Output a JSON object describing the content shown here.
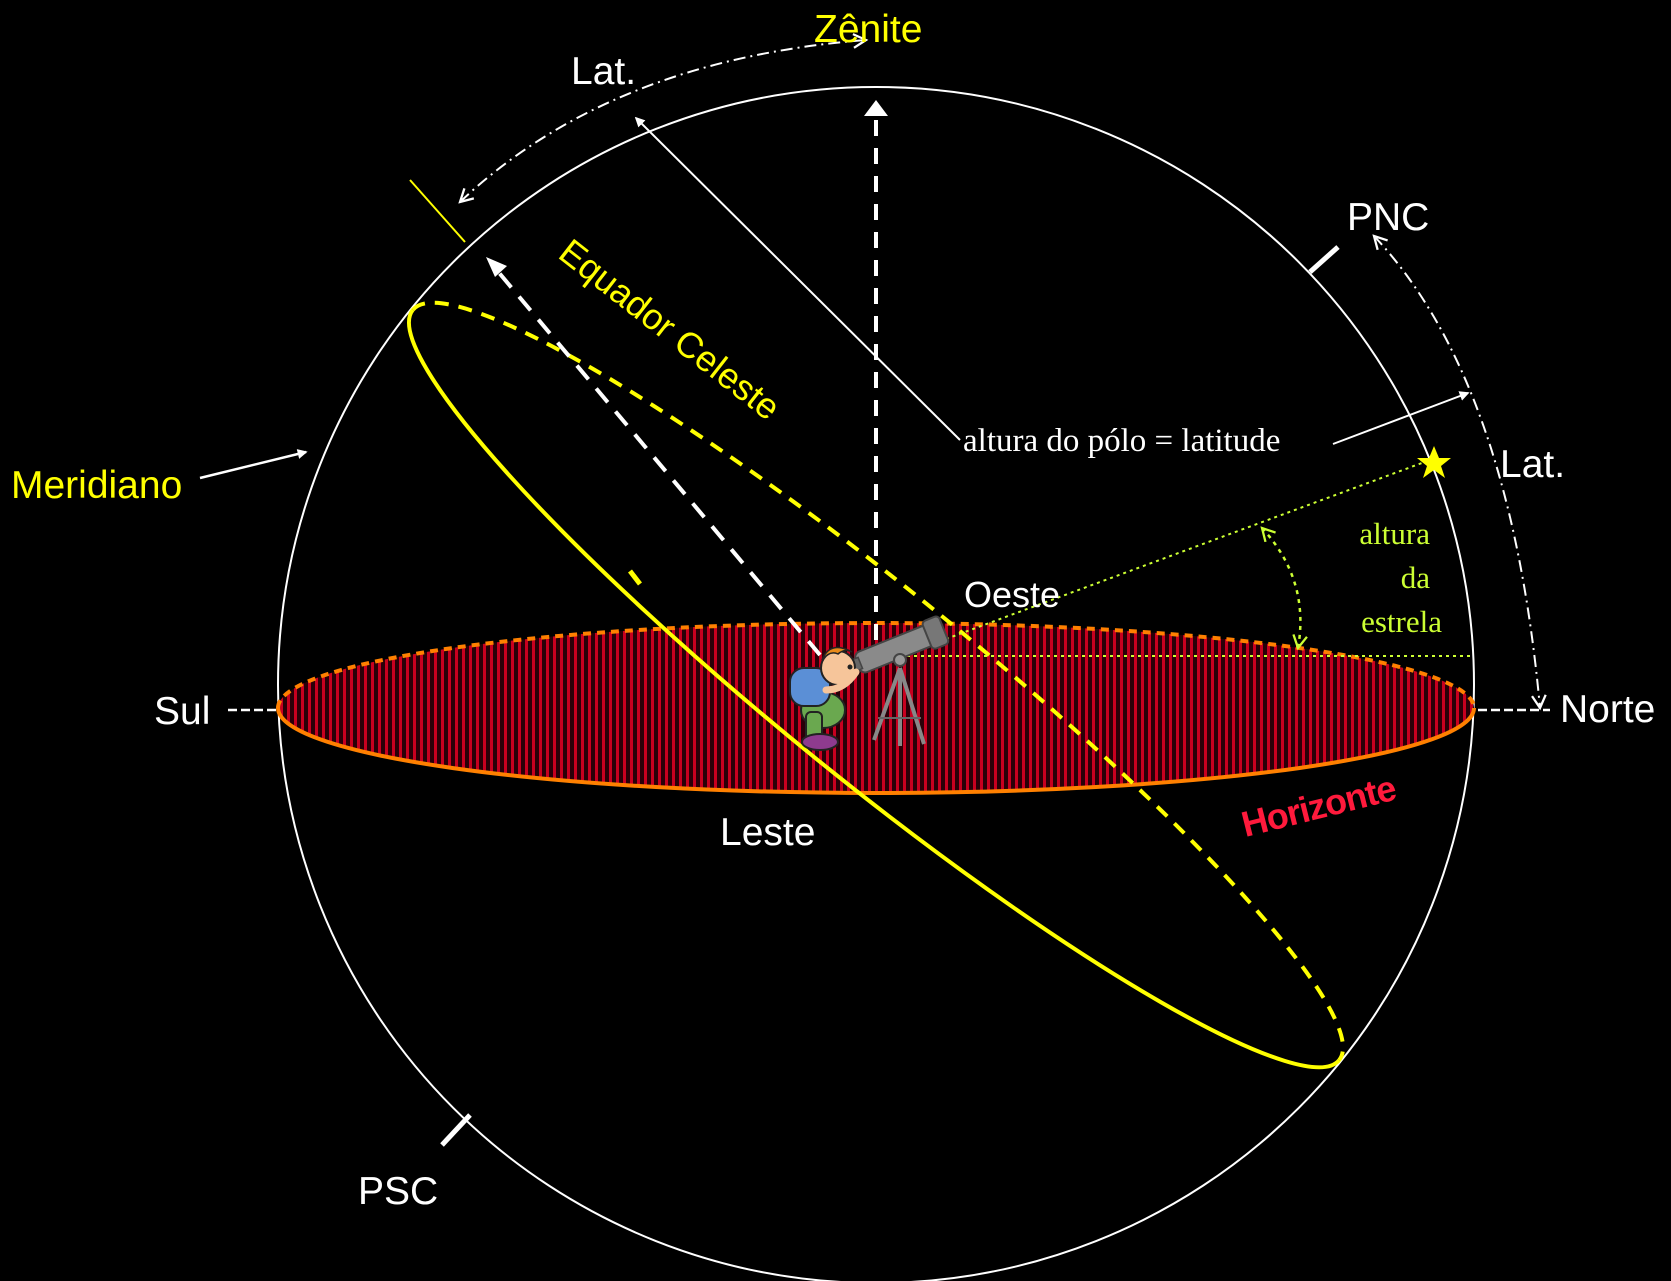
{
  "labels": {
    "zenith": "Zênite",
    "lat_top": "Lat.",
    "pnc": "PNC",
    "psc": "PSC",
    "lat_right": "Lat.",
    "meridian": "Meridiano",
    "celestial_equator": "Equador Celeste",
    "pole_altitude": "altura do pólo = latitude",
    "west": "Oeste",
    "east": "Leste",
    "south": "Sul",
    "north": "Norte",
    "horizon": "Horizonte",
    "star_altitude_1": "altura",
    "star_altitude_2": "da",
    "star_altitude_3": "estrela"
  },
  "colors": {
    "background": "#000000",
    "sphere": "#ffffff",
    "equator": "#ffff00",
    "horizon_edge": "#ff8000",
    "horizon_fill": "#b0001e",
    "star": "#ffff00",
    "star_altitude": "#ccff33"
  },
  "icons": {
    "observer": "observer-with-telescope-icon",
    "star": "star-icon"
  }
}
